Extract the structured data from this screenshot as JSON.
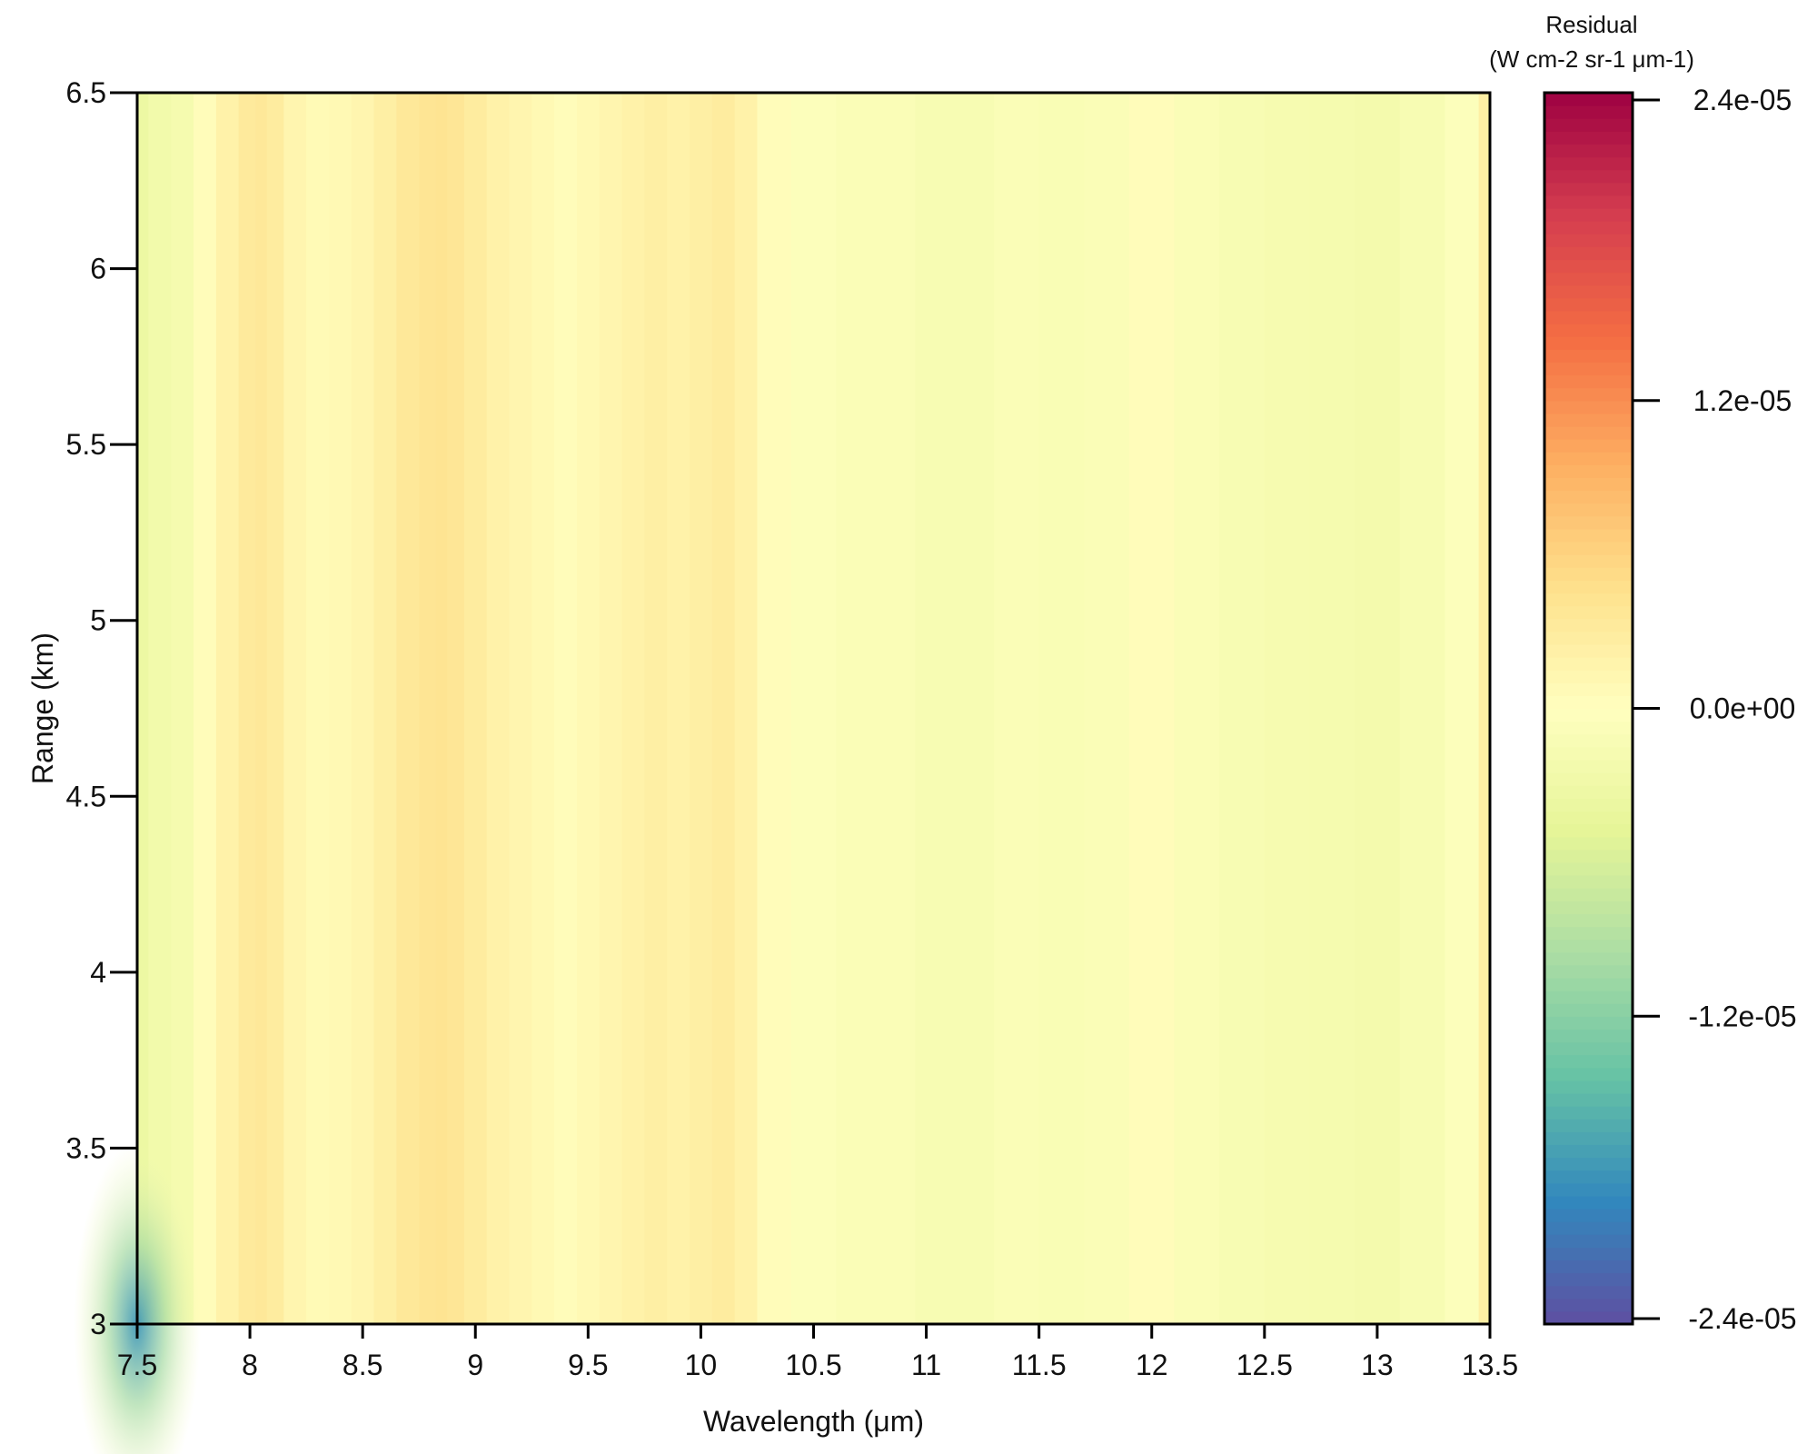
{
  "chart_data": {
    "type": "heatmap",
    "xlabel": "Wavelength (μm)",
    "ylabel": "Range (km)",
    "xlim": [
      7.5,
      13.5
    ],
    "ylim": [
      3,
      6.5
    ],
    "x_ticks": [
      7.5,
      8,
      8.5,
      9,
      9.5,
      10,
      10.5,
      11,
      11.5,
      12,
      12.5,
      13,
      13.5
    ],
    "x_tick_labels": [
      "7.5",
      "8",
      "8.5",
      "9",
      "9.5",
      "10",
      "10.5",
      "11",
      "11.5",
      "12",
      "12.5",
      "13",
      "13.5"
    ],
    "y_ticks": [
      3,
      3.5,
      4,
      4.5,
      5,
      5.5,
      6,
      6.5
    ],
    "y_tick_labels": [
      "3",
      "3.5",
      "4",
      "4.5",
      "5",
      "5.5",
      "6",
      "6.5"
    ],
    "colorbar": {
      "title": "Residual",
      "unit": "(W cm-2 sr-1  μm-1)",
      "range": [
        -2.4e-05,
        2.4e-05
      ],
      "ticks": [
        2.4e-05,
        1.2e-05,
        0,
        -1.2e-05,
        -2.4e-05
      ],
      "tick_labels": [
        "2.4e-05",
        "1.2e-05",
        "0.0e+00",
        "-1.2e-05",
        "-2.4e-05"
      ],
      "palette": [
        "#5e4fa2",
        "#3288bd",
        "#66c2a5",
        "#abdda4",
        "#e6f598",
        "#ffffbf",
        "#fee08b",
        "#fdae61",
        "#f46d43",
        "#d53e4f",
        "#9e0142"
      ]
    },
    "column_profile": {
      "wavelength": [
        7.5,
        7.6,
        7.7,
        7.8,
        7.9,
        8.0,
        8.05,
        8.1,
        8.2,
        8.3,
        8.4,
        8.5,
        8.6,
        8.7,
        8.8,
        8.85,
        8.9,
        9.0,
        9.1,
        9.2,
        9.3,
        9.4,
        9.5,
        9.6,
        9.7,
        9.8,
        9.9,
        10.0,
        10.1,
        10.2,
        10.3,
        10.5,
        10.7,
        10.9,
        11.0,
        11.2,
        11.4,
        11.6,
        11.8,
        12.0,
        12.2,
        12.4,
        12.6,
        12.8,
        13.0,
        13.2,
        13.4,
        13.5
      ],
      "residual": [
        -3.5e-06,
        -2.5e-06,
        -2e-06,
        5e-07,
        2e-06,
        3.2e-06,
        3.5e-06,
        3e-06,
        1.5e-06,
        8e-07,
        1e-06,
        1.5e-06,
        2.5e-06,
        3.5e-06,
        4e-06,
        4.2e-06,
        3.8e-06,
        3e-06,
        2e-06,
        1.5e-06,
        1e-06,
        5e-07,
        1e-06,
        1.5e-06,
        2e-06,
        2.5e-06,
        2e-06,
        2.5e-06,
        3e-06,
        2e-06,
        5e-07,
        -5e-07,
        -1e-06,
        -1e-06,
        -1.5e-06,
        -1.5e-06,
        -1e-06,
        -1.2e-06,
        -1e-06,
        5e-07,
        -1e-06,
        -1.5e-06,
        -1.8e-06,
        -2e-06,
        -2.2e-06,
        -1.5e-06,
        -5e-07,
        2.5e-06
      ]
    },
    "local_minimum": {
      "wavelength": 7.5,
      "range": 3.0,
      "residual": -1.8e-05
    }
  }
}
